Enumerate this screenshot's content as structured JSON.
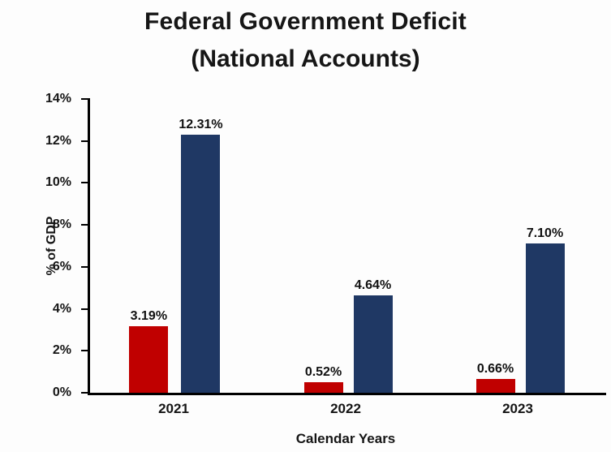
{
  "chart_data": {
    "type": "bar",
    "title": "Federal Government Deficit",
    "subtitle": "(National Accounts)",
    "xlabel": "Calendar Years",
    "ylabel": "% of GDP",
    "categories": [
      "2021",
      "2022",
      "2023"
    ],
    "series": [
      {
        "name": "red-series",
        "color": "#C00000",
        "values": [
          3.19,
          0.52,
          0.66
        ],
        "labels": [
          "3.19%",
          "0.52%",
          "0.66%"
        ]
      },
      {
        "name": "navy-series",
        "color": "#1F3864",
        "values": [
          12.31,
          4.64,
          7.1
        ],
        "labels": [
          "12.31%",
          "4.64%",
          "7.10%"
        ]
      }
    ],
    "ylim": [
      0,
      14
    ],
    "yticks": [
      {
        "value": 0,
        "label": "0%"
      },
      {
        "value": 2,
        "label": "2%"
      },
      {
        "value": 4,
        "label": "4%"
      },
      {
        "value": 6,
        "label": "6%"
      },
      {
        "value": 8,
        "label": "8%"
      },
      {
        "value": 10,
        "label": "10%"
      },
      {
        "value": 12,
        "label": "12%"
      },
      {
        "value": 14,
        "label": "14%"
      }
    ],
    "grid": false,
    "legend": "none"
  }
}
